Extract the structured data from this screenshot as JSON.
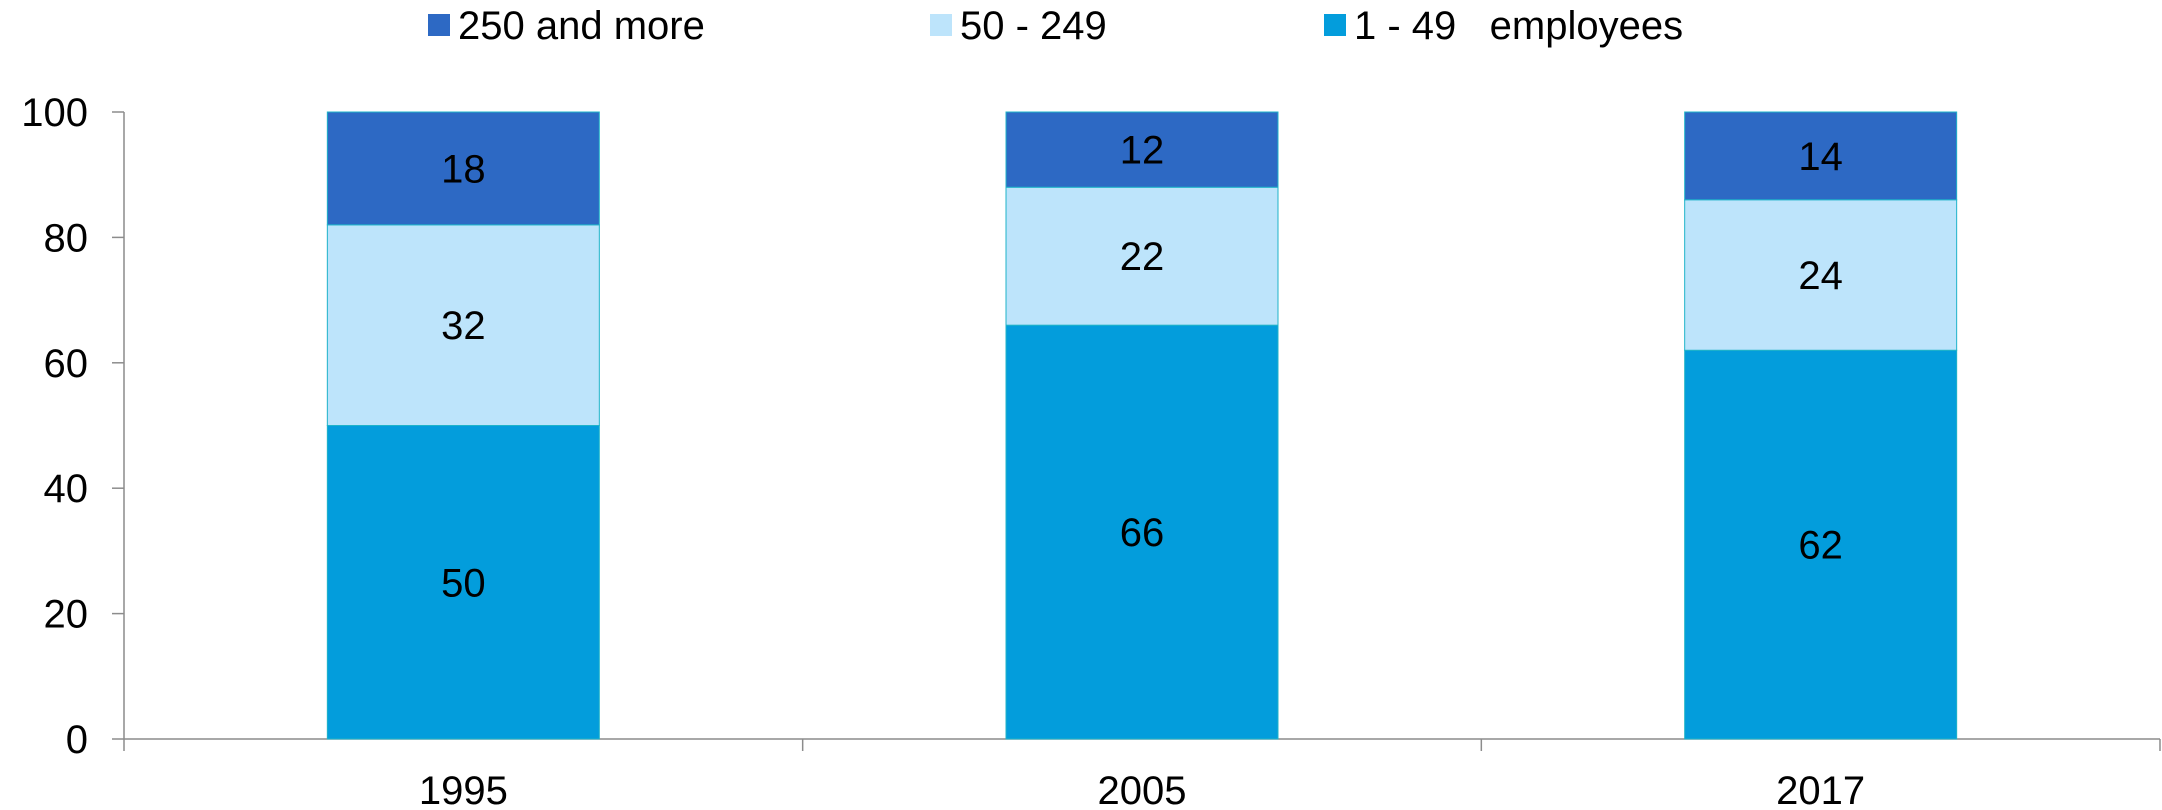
{
  "chart_data": {
    "type": "bar",
    "stacked": true,
    "categories": [
      "1995",
      "2005",
      "2017"
    ],
    "series": [
      {
        "name": "1 - 49   employees",
        "values": [
          50,
          66,
          62
        ],
        "color": "#039ddc"
      },
      {
        "name": "50 - 249",
        "values": [
          32,
          22,
          24
        ],
        "color": "#bde4fb"
      },
      {
        "name": "250 and more",
        "values": [
          18,
          12,
          14
        ],
        "color": "#2d69c4"
      }
    ],
    "legend_order": [
      "250 and more",
      "50 - 249",
      "1 - 49   employees"
    ],
    "ylim": [
      0,
      100
    ],
    "yticks": [
      0,
      20,
      40,
      60,
      80,
      100
    ],
    "legend_position": "top",
    "grid": false
  }
}
